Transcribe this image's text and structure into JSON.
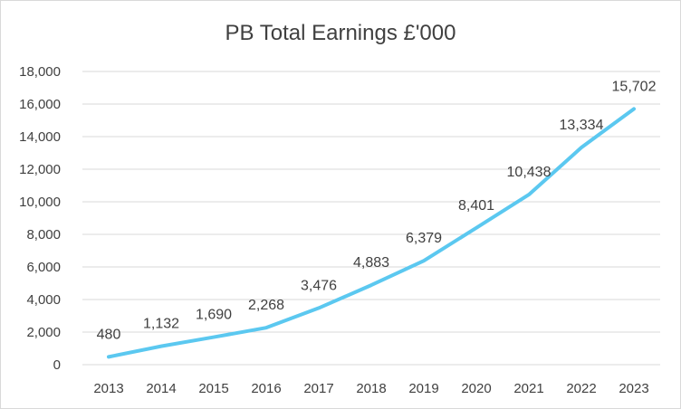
{
  "chart_data": {
    "type": "line",
    "title": "PB Total Earnings £'000",
    "categories": [
      "2013",
      "2014",
      "2015",
      "2016",
      "2017",
      "2018",
      "2019",
      "2020",
      "2021",
      "2022",
      "2023"
    ],
    "series": [
      {
        "values": [
          480,
          1132,
          1690,
          2268,
          3476,
          4883,
          6379,
          8401,
          10438,
          13334,
          15702
        ],
        "labels": [
          "480",
          "1,132",
          "1,690",
          "2,268",
          "3,476",
          "4,883",
          "6,379",
          "8,401",
          "10,438",
          "13,334",
          "15,702"
        ],
        "color": "#5bc8f0"
      }
    ],
    "ylim": [
      0,
      18000
    ],
    "y_ticks": [
      0,
      2000,
      4000,
      6000,
      8000,
      10000,
      12000,
      14000,
      16000,
      18000
    ],
    "y_tick_labels": [
      "0",
      "2,000",
      "4,000",
      "6,000",
      "8,000",
      "10,000",
      "12,000",
      "14,000",
      "16,000",
      "18,000"
    ],
    "grid": true,
    "gridline_color": "#d9d9d9",
    "legend": "none"
  }
}
